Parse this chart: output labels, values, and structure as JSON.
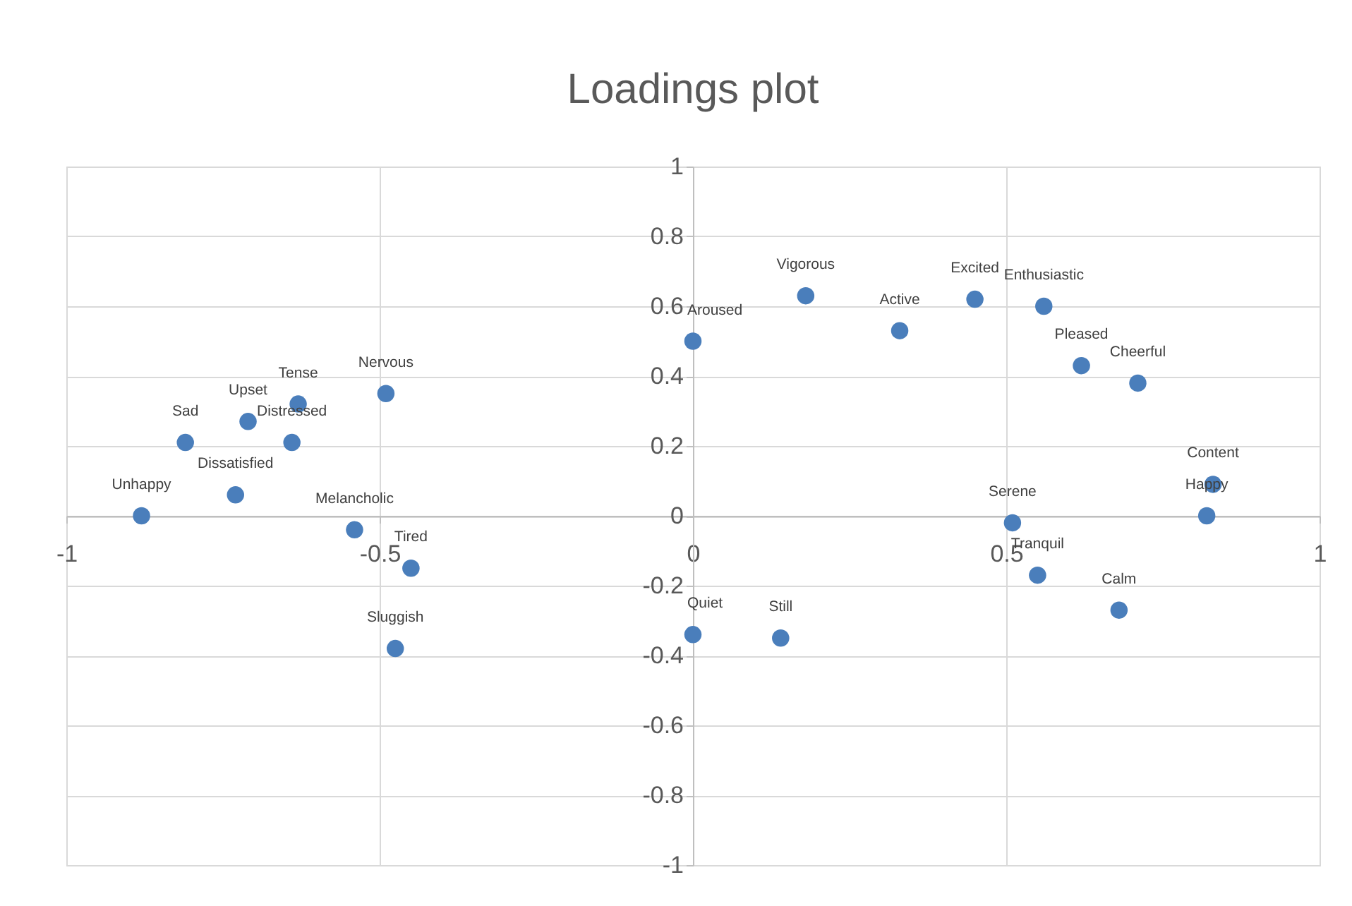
{
  "chart_data": {
    "type": "scatter",
    "title": "Loadings plot",
    "x": [
      -0.88,
      -0.81,
      -0.71,
      -0.63,
      -0.64,
      -0.73,
      -0.49,
      -0.54,
      -0.45,
      -0.475,
      0,
      0.18,
      0.33,
      0.45,
      0.56,
      0.62,
      0.71,
      0.83,
      0.82,
      0.51,
      0.55,
      0.68,
      0,
      0.14
    ],
    "series": [
      {
        "color": "#4a7ebb",
        "values": [
          0,
          0.21,
          0.27,
          0.32,
          0.21,
          0.06,
          0.35,
          -0.04,
          -0.15,
          -0.38,
          0.5,
          0.63,
          0.53,
          0.62,
          0.6,
          0.43,
          0.38,
          0.09,
          0,
          -0.02,
          -0.17,
          -0.27,
          -0.34,
          -0.35
        ]
      }
    ],
    "annotations": [
      {
        "text": "Unhappy",
        "x": -0.88,
        "y": 0
      },
      {
        "text": "Sad",
        "x": -0.81,
        "y": 0.21
      },
      {
        "text": "Upset",
        "x": -0.71,
        "y": 0.27
      },
      {
        "text": "Tense",
        "x": -0.63,
        "y": 0.32
      },
      {
        "text": "Distressed",
        "x": -0.64,
        "y": 0.21
      },
      {
        "text": "Dissatisfied",
        "x": -0.73,
        "y": 0.06
      },
      {
        "text": "Nervous",
        "x": -0.49,
        "y": 0.35
      },
      {
        "text": "Melancholic",
        "x": -0.54,
        "y": -0.04
      },
      {
        "text": "Tired",
        "x": -0.45,
        "y": -0.15
      },
      {
        "text": "Sluggish",
        "x": -0.475,
        "y": -0.38
      },
      {
        "text": "Aroused",
        "x": 0,
        "y": 0.5
      },
      {
        "text": "Vigorous",
        "x": 0.18,
        "y": 0.63
      },
      {
        "text": "Active",
        "x": 0.33,
        "y": 0.53
      },
      {
        "text": "Excited",
        "x": 0.45,
        "y": 0.62
      },
      {
        "text": "Enthusiastic",
        "x": 0.56,
        "y": 0.6
      },
      {
        "text": "Pleased",
        "x": 0.62,
        "y": 0.43
      },
      {
        "text": "Cheerful",
        "x": 0.71,
        "y": 0.38
      },
      {
        "text": "Content",
        "x": 0.83,
        "y": 0.09
      },
      {
        "text": "Happy",
        "x": 0.82,
        "y": 0
      },
      {
        "text": "Serene",
        "x": 0.51,
        "y": -0.02
      },
      {
        "text": "Tranquil",
        "x": 0.55,
        "y": -0.17
      },
      {
        "text": "Calm",
        "x": 0.68,
        "y": -0.27
      },
      {
        "text": "Quiet",
        "x": 0,
        "y": -0.34
      },
      {
        "text": "Still",
        "x": 0.14,
        "y": -0.35
      }
    ],
    "xlim": [
      -1,
      1
    ],
    "xticks": [
      -1,
      -0.5,
      0,
      0.5,
      1
    ],
    "ylim": [
      -1,
      1
    ],
    "yticks": [
      -1,
      -0.8,
      -0.6,
      -0.4,
      -0.2,
      0,
      0.2,
      0.4,
      0.6,
      0.8,
      1
    ],
    "grid": true,
    "marker": "circle"
  }
}
